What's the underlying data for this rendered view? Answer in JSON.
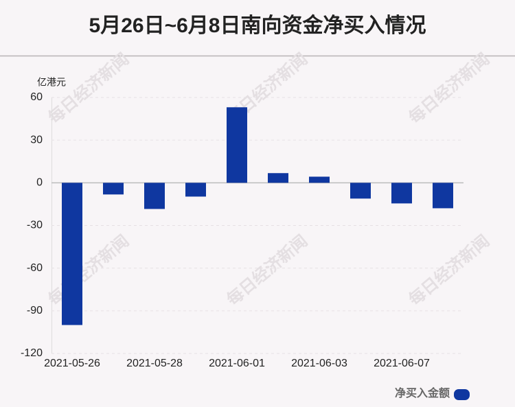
{
  "chart_data": {
    "type": "bar",
    "title": "5月26日~6月8日南向资金净买入情况",
    "y_label": "亿港元",
    "watermark": "每日经济新闻",
    "categories": [
      "2021-05-26",
      null,
      "2021-05-28",
      null,
      "2021-06-01",
      null,
      "2021-06-03",
      null,
      "2021-06-07",
      null
    ],
    "series": [
      {
        "name": "净买入金额",
        "color": "#0f37a0",
        "values": [
          -100,
          -8.2,
          -18.4,
          -9.7,
          53.1,
          6.8,
          4.3,
          -11.1,
          -14.5,
          -17.9
        ]
      }
    ],
    "ylim": [
      -120,
      60
    ],
    "yticks": [
      -120,
      -90,
      -60,
      -30,
      0,
      30,
      60
    ],
    "grid": true
  }
}
